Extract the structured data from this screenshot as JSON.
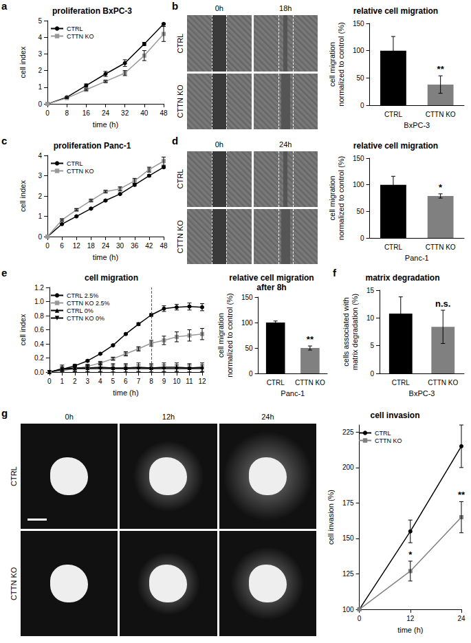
{
  "chart_data": [
    {
      "panel": "a",
      "type": "line",
      "title": "proliferation BxPC-3",
      "x_label": "time (h)",
      "y_label": "cell index",
      "x": [
        0,
        8,
        16,
        24,
        32,
        40,
        48
      ],
      "xlim": [
        0,
        48
      ],
      "xticks": [
        0,
        8,
        16,
        24,
        32,
        40,
        48
      ],
      "ylim": [
        0,
        5
      ],
      "yticks": [
        0,
        1,
        2,
        3,
        4,
        5
      ],
      "grid": false,
      "legend": "top-left",
      "series": [
        {
          "name": "CTRL",
          "color": "#000000",
          "marker": "circle",
          "values": [
            0,
            0.4,
            1.1,
            1.8,
            2.45,
            3.6,
            4.8
          ],
          "errors": [
            0,
            0.03,
            0.1,
            0.15,
            0.2,
            0.1,
            0.05
          ]
        },
        {
          "name": "CTTN KO",
          "color": "#999999",
          "marker": "square",
          "values": [
            0,
            0.35,
            0.85,
            1.35,
            1.85,
            2.9,
            4.2
          ],
          "errors": [
            0,
            0.03,
            0.05,
            0.05,
            0.15,
            0.3,
            0.45
          ]
        }
      ]
    },
    {
      "type": "bar",
      "title": "relative cell migration",
      "x_label": "BxPC-3",
      "y_label": "cell migration\nnormalized to control (%)",
      "categories": [
        "CTRL",
        "CTTN KO"
      ],
      "values": [
        100,
        38
      ],
      "errors": [
        26,
        16
      ],
      "colors": [
        "#000000",
        "#808080"
      ],
      "annotations": [
        null,
        "**"
      ],
      "ylim": [
        0,
        150
      ],
      "yticks": [
        0,
        50,
        100,
        150
      ],
      "grid": false
    },
    {
      "panel": "c",
      "type": "line",
      "title": "proliferation Panc-1",
      "x_label": "time (h)",
      "y_label": "cell index",
      "x": [
        0,
        6,
        12,
        18,
        24,
        30,
        36,
        42,
        48
      ],
      "xlim": [
        0,
        48
      ],
      "xticks": [
        0,
        6,
        12,
        18,
        24,
        30,
        36,
        42,
        48
      ],
      "ylim": [
        0,
        4
      ],
      "yticks": [
        0,
        1,
        2,
        3,
        4
      ],
      "grid": false,
      "legend": "top-left",
      "series": [
        {
          "name": "CTRL",
          "color": "#000000",
          "marker": "circle",
          "values": [
            0,
            0.62,
            1.0,
            1.38,
            1.78,
            2.1,
            2.55,
            3.0,
            3.42
          ],
          "errors": [
            0,
            0.03,
            0.03,
            0.03,
            0.03,
            0.03,
            0.05,
            0.05,
            0.05
          ]
        },
        {
          "name": "CTTN KO",
          "color": "#999999",
          "marker": "square",
          "values": [
            0,
            0.82,
            1.32,
            1.78,
            2.22,
            2.35,
            2.75,
            3.3,
            3.72
          ],
          "errors": [
            0,
            0.05,
            0.05,
            0.05,
            0.05,
            0.1,
            0.12,
            0.12,
            0.2
          ]
        }
      ]
    },
    {
      "type": "bar",
      "title": "relative cell migration",
      "x_label": "Panc-1",
      "y_label": "cell migration\nnormalized to control (%)",
      "categories": [
        "CTRL",
        "CTTN KO"
      ],
      "values": [
        100,
        79
      ],
      "errors": [
        16,
        4
      ],
      "colors": [
        "#000000",
        "#808080"
      ],
      "annotations": [
        null,
        "*"
      ],
      "ylim": [
        0,
        150
      ],
      "yticks": [
        0,
        50,
        100,
        150
      ],
      "grid": false
    },
    {
      "panel": "e",
      "type": "line",
      "title": "cell migration",
      "x_label": "time (h)",
      "y_label": "cell index",
      "x": [
        0,
        1,
        2,
        3,
        4,
        5,
        6,
        7,
        8,
        9,
        10,
        11,
        12
      ],
      "xlim": [
        0,
        12
      ],
      "xticks": [
        0,
        1,
        2,
        3,
        4,
        5,
        6,
        7,
        8,
        9,
        10,
        11,
        12
      ],
      "ylim": [
        0,
        1.2
      ],
      "yticks": [
        {
          "value": 0,
          "label": "0.0"
        },
        {
          "value": 0.2,
          "label": "0.2"
        },
        {
          "value": 0.4,
          "label": "0.4"
        },
        {
          "value": 0.6,
          "label": "0.6"
        },
        {
          "value": 0.8,
          "label": "0.8"
        },
        {
          "value": 1,
          "label": "1.0"
        },
        {
          "value": 1.2,
          "label": "1.2"
        }
      ],
      "grid": false,
      "legend": "top-left",
      "reference_x": 8,
      "series": [
        {
          "name": "CTRL 2.5%",
          "color": "#000000",
          "marker": "circle",
          "values": [
            0,
            0.04,
            0.09,
            0.16,
            0.26,
            0.38,
            0.54,
            0.68,
            0.81,
            0.9,
            0.92,
            0.93,
            0.92
          ],
          "errors": [
            0,
            0.01,
            0.01,
            0.01,
            0.01,
            0.01,
            0.01,
            0.02,
            0.02,
            0.04,
            0.04,
            0.05,
            0.05
          ]
        },
        {
          "name": "CTTN KO 2.5%",
          "color": "#999999",
          "marker": "square",
          "values": [
            0,
            0.02,
            0.05,
            0.08,
            0.13,
            0.19,
            0.26,
            0.33,
            0.41,
            0.45,
            0.5,
            0.52,
            0.54
          ],
          "errors": [
            0,
            0.01,
            0.01,
            0.01,
            0.02,
            0.02,
            0.03,
            0.03,
            0.04,
            0.06,
            0.07,
            0.08,
            0.08
          ]
        },
        {
          "name": "CTRL 0%",
          "color": "#000000",
          "marker": "triangle",
          "values": [
            0,
            0.05,
            0.06,
            0.06,
            0.07,
            0.06,
            0.06,
            0.07,
            0.06,
            0.07,
            0.07,
            0.06,
            0.07
          ],
          "errors": [
            0,
            0.05,
            0.05,
            0.05,
            0.06,
            0.06,
            0.06,
            0.06,
            0.06,
            0.06,
            0.06,
            0.06,
            0.06
          ]
        },
        {
          "name": "CTTN KO 0%",
          "color": "#000000",
          "marker": "triangle-down",
          "values": [
            0,
            0.04,
            0.05,
            0.05,
            0.05,
            0.05,
            0.05,
            0.05,
            0.05,
            0.05,
            0.05,
            0.05,
            0.05
          ],
          "errors": [
            0,
            0.04,
            0.04,
            0.05,
            0.05,
            0.05,
            0.05,
            0.05,
            0.05,
            0.05,
            0.05,
            0.05,
            0.05
          ]
        }
      ]
    },
    {
      "type": "bar",
      "title": "relative cell migration\nafter 8h",
      "x_label": "Panc-1",
      "y_label": "cell migration\nnormalized to control (%)",
      "categories": [
        "CTRL",
        "CTTN KO"
      ],
      "values": [
        100,
        50
      ],
      "errors": [
        3,
        4
      ],
      "colors": [
        "#000000",
        "#808080"
      ],
      "annotations": [
        null,
        "**"
      ],
      "ylim": [
        0,
        150
      ],
      "yticks": [
        0,
        50,
        100,
        150
      ],
      "grid": false
    },
    {
      "panel": "f",
      "type": "bar",
      "title": "matrix degradation",
      "x_label": "BxPC-3",
      "y_label": "cells associated with\nmatrix degradation (%)",
      "categories": [
        "CTRL",
        "CTTN KO"
      ],
      "values": [
        10.8,
        8.4
      ],
      "errors": [
        3,
        3
      ],
      "colors": [
        "#000000",
        "#808080"
      ],
      "annotations": [
        null,
        "n.s."
      ],
      "ylim": [
        0,
        15
      ],
      "yticks": [
        0,
        5,
        10,
        15
      ],
      "grid": false
    },
    {
      "type": "line",
      "title": "cell invasion",
      "x_label": "time (h)",
      "y_label": "cell invasion (%)",
      "x": [
        0,
        12,
        24
      ],
      "xlim": [
        0,
        24
      ],
      "xticks": [
        0,
        12,
        24
      ],
      "ylim": [
        100,
        230
      ],
      "yticks": [
        100,
        125,
        150,
        175,
        200,
        225
      ],
      "grid": false,
      "legend": "top-left",
      "series": [
        {
          "name": "CTRL",
          "color": "#000000",
          "marker": "circle",
          "values": [
            100,
            155,
            215
          ],
          "errors": [
            0,
            8,
            15
          ]
        },
        {
          "name": "CTTN KO",
          "color": "#808080",
          "marker": "square",
          "values": [
            100,
            127,
            165
          ],
          "errors": [
            0,
            7,
            11
          ],
          "annotations": [
            null,
            "*",
            "**"
          ]
        }
      ]
    }
  ],
  "images": [
    {
      "panel": "b",
      "columns": [
        "0h",
        "18h"
      ],
      "rows": [
        "CTRL",
        "CTTN KO"
      ]
    },
    {
      "panel": "d",
      "columns": [
        "0h",
        "24h"
      ],
      "rows": [
        "CTRL",
        "CTTN KO"
      ]
    },
    {
      "panel": "g",
      "columns": [
        "0h",
        "12h",
        "24h"
      ],
      "rows": [
        "CTRL",
        "CTTN KO"
      ]
    }
  ]
}
